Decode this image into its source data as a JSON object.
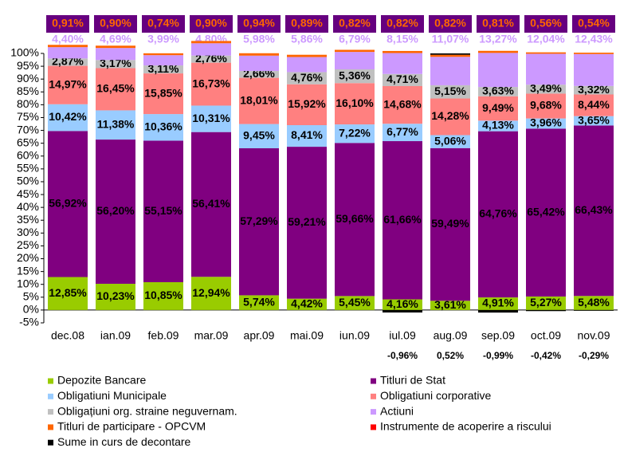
{
  "chart_data": {
    "type": "stacked-bar",
    "categories": [
      "dec.08",
      "ian.09",
      "feb.09",
      "mar.09",
      "apr.09",
      "mai.09",
      "iun.09",
      "iul.09",
      "aug.09",
      "sep.09",
      "oct.09",
      "nov.09"
    ],
    "series": [
      {
        "name": "Depozite Bancare",
        "color": "#99cc00",
        "values": [
          12.85,
          10.23,
          10.85,
          12.94,
          5.74,
          4.42,
          5.45,
          4.16,
          3.61,
          4.91,
          5.27,
          5.48
        ],
        "value_labels": [
          "12,85%",
          "10,23%",
          "10,85%",
          "12,94%",
          "5,74%",
          "4,42%",
          "5,45%",
          "4,16%",
          "3,61%",
          "4,91%",
          "5,27%",
          "5,48%"
        ]
      },
      {
        "name": "Titluri de Stat",
        "color": "#800080",
        "values": [
          56.92,
          56.2,
          55.15,
          56.41,
          57.29,
          59.21,
          59.66,
          61.66,
          59.49,
          64.76,
          65.42,
          66.43
        ],
        "value_labels": [
          "56,92%",
          "56,20%",
          "55,15%",
          "56,41%",
          "57,29%",
          "59,21%",
          "59,66%",
          "61,66%",
          "59,49%",
          "64,76%",
          "65,42%",
          "66,43%"
        ]
      },
      {
        "name": "Obligatiuni Municipale",
        "color": "#99ccff",
        "values": [
          10.42,
          11.38,
          10.36,
          10.31,
          9.45,
          8.41,
          7.22,
          6.77,
          5.06,
          4.13,
          3.96,
          3.65
        ],
        "value_labels": [
          "10,42%",
          "11,38%",
          "10,36%",
          "10,31%",
          "9,45%",
          "8,41%",
          "7,22%",
          "6,77%",
          "5,06%",
          "4,13%",
          "3,96%",
          "3,65%"
        ]
      },
      {
        "name": "Obligatiuni corporative",
        "color": "#ff8080",
        "values": [
          14.97,
          16.45,
          15.85,
          16.73,
          18.01,
          15.92,
          16.1,
          14.68,
          14.28,
          9.49,
          9.68,
          8.44
        ],
        "value_labels": [
          "14,97%",
          "16,45%",
          "15,85%",
          "16,73%",
          "18,01%",
          "15,92%",
          "16,10%",
          "14,68%",
          "14,28%",
          "9,49%",
          "9,68%",
          "8,44%"
        ]
      },
      {
        "name": "Obligațiuni org. straine neguvernam.",
        "color": "#c0c0c0",
        "values": [
          2.87,
          3.17,
          3.11,
          2.76,
          2.66,
          4.76,
          5.36,
          4.71,
          5.15,
          3.63,
          3.49,
          3.32
        ],
        "value_labels": [
          "2,87%",
          "3,17%",
          "3,11%",
          "2,76%",
          "2,66%",
          "4,76%",
          "5,36%",
          "4,71%",
          "5,15%",
          "3,63%",
          "3,49%",
          "3,32%"
        ]
      },
      {
        "name": "Actiuni",
        "color": "#cc99ff",
        "values": [
          4.4,
          4.69,
          3.99,
          4.8,
          5.98,
          5.86,
          6.79,
          8.15,
          11.07,
          13.27,
          12.04,
          12.43
        ],
        "value_labels": [
          "4,40%",
          "4,69%",
          "3,99%",
          "4,80%",
          "5,98%",
          "5,86%",
          "6,79%",
          "8,15%",
          "11,07%",
          "13,27%",
          "12,04%",
          "12,43%"
        ]
      },
      {
        "name": "Titluri de participare - OPCVM",
        "color": "#ff6600",
        "values": [
          0.91,
          0.9,
          0.74,
          0.9,
          0.94,
          0.89,
          0.82,
          0.82,
          0.82,
          0.81,
          0.56,
          0.54
        ],
        "value_labels": [
          "0,91%",
          "0,90%",
          "0,74%",
          "0,90%",
          "0,94%",
          "0,89%",
          "0,82%",
          "0,82%",
          "0,82%",
          "0,81%",
          "0,56%",
          "0,54%"
        ]
      },
      {
        "name": "Instrumente de acoperire a riscului",
        "color": "#ff0000",
        "values": [
          null,
          null,
          null,
          null,
          null,
          null,
          null,
          null,
          null,
          null,
          null,
          null
        ]
      },
      {
        "name": "Sume in curs de decontare",
        "color": "#000000",
        "values": [
          null,
          null,
          null,
          null,
          null,
          null,
          null,
          -0.96,
          0.52,
          -0.99,
          -0.42,
          -0.29
        ],
        "value_labels": [
          null,
          null,
          null,
          null,
          null,
          null,
          null,
          "-0,96%",
          "0,52%",
          "-0,99%",
          "-0,42%",
          "-0,29%"
        ]
      }
    ],
    "ylim": [
      -5,
      100
    ],
    "yticks": [
      {
        "value": -5,
        "label": "-5%"
      },
      {
        "value": 0,
        "label": "0%"
      },
      {
        "value": 5,
        "label": "5%"
      },
      {
        "value": 10,
        "label": "10%"
      },
      {
        "value": 15,
        "label": "15%"
      },
      {
        "value": 20,
        "label": "20%"
      },
      {
        "value": 25,
        "label": "25%"
      },
      {
        "value": 30,
        "label": "30%"
      },
      {
        "value": 35,
        "label": "35%"
      },
      {
        "value": 40,
        "label": "40%"
      },
      {
        "value": 45,
        "label": "45%"
      },
      {
        "value": 50,
        "label": "50%"
      },
      {
        "value": 55,
        "label": "55%"
      },
      {
        "value": 60,
        "label": "60%"
      },
      {
        "value": 65,
        "label": "65%"
      },
      {
        "value": 70,
        "label": "70%"
      },
      {
        "value": 75,
        "label": "75%"
      },
      {
        "value": 80,
        "label": "80%"
      },
      {
        "value": 85,
        "label": "85%"
      },
      {
        "value": 90,
        "label": "90%"
      },
      {
        "value": 95,
        "label": "95%"
      },
      {
        "value": 100,
        "label": "100%"
      }
    ]
  }
}
